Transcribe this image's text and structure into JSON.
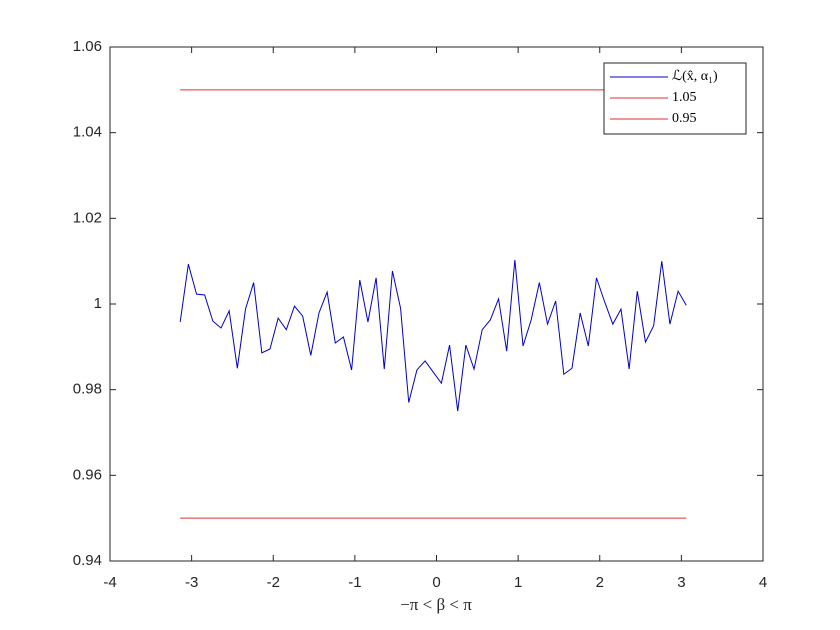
{
  "chart_data": {
    "type": "line",
    "xlabel": "−π < β < π",
    "xlim": [
      -4,
      4
    ],
    "xticks": [
      -4,
      -3,
      -2,
      -1,
      0,
      1,
      2,
      3,
      4
    ],
    "ylim": [
      0.94,
      1.06
    ],
    "yticks": [
      0.94,
      0.96,
      0.98,
      1,
      1.02,
      1.04,
      1.06
    ],
    "grid": false,
    "legend": "northeast",
    "series": [
      {
        "name": "ℒ(x̂, α₁)",
        "color": "#0000cc",
        "x": [
          -3.14,
          -3.04,
          -2.94,
          -2.84,
          -2.74,
          -2.64,
          -2.54,
          -2.44,
          -2.34,
          -2.24,
          -2.14,
          -2.04,
          -1.94,
          -1.84,
          -1.74,
          -1.64,
          -1.54,
          -1.44,
          -1.34,
          -1.24,
          -1.14,
          -1.04,
          -0.94,
          -0.84,
          -0.74,
          -0.64,
          -0.54,
          -0.44,
          -0.34,
          -0.24,
          -0.14,
          -0.04,
          0.06,
          0.16,
          0.26,
          0.36,
          0.46,
          0.56,
          0.66,
          0.76,
          0.86,
          0.96,
          1.06,
          1.16,
          1.26,
          1.36,
          1.46,
          1.56,
          1.66,
          1.76,
          1.86,
          1.96,
          2.06,
          2.16,
          2.26,
          2.36,
          2.46,
          2.56,
          2.66,
          2.76,
          2.86,
          2.96,
          3.06
        ],
        "values": [
          0.9958,
          1.0093,
          1.0023,
          1.0021,
          0.996,
          0.9944,
          0.9984,
          0.985,
          0.9988,
          1.005,
          0.9886,
          0.9895,
          0.9967,
          0.994,
          0.9995,
          0.9972,
          0.988,
          0.9979,
          1.0028,
          0.9909,
          0.9923,
          0.9846,
          1.0056,
          0.9958,
          1.0061,
          0.9848,
          1.0077,
          0.999,
          0.977,
          0.9846,
          0.9867,
          0.9841,
          0.9815,
          0.9904,
          0.975,
          0.9904,
          0.9848,
          0.994,
          0.9963,
          1.0012,
          0.989,
          1.0103,
          0.9902,
          0.9963,
          1.005,
          0.9953,
          1.0007,
          0.9836,
          0.985,
          0.9979,
          0.9902,
          1.0061,
          1.0005,
          0.9953,
          0.9988,
          0.9848,
          1.003,
          0.9911,
          0.9949,
          1.01,
          0.9953,
          1.003,
          0.9997
        ]
      },
      {
        "name": "1.05",
        "color": "#e03030",
        "x": [
          -3.14,
          3.06
        ],
        "values": [
          1.05,
          1.05
        ]
      },
      {
        "name": "0.95",
        "color": "#e03030",
        "x": [
          -3.14,
          3.06
        ],
        "values": [
          0.95,
          0.95
        ]
      }
    ]
  }
}
